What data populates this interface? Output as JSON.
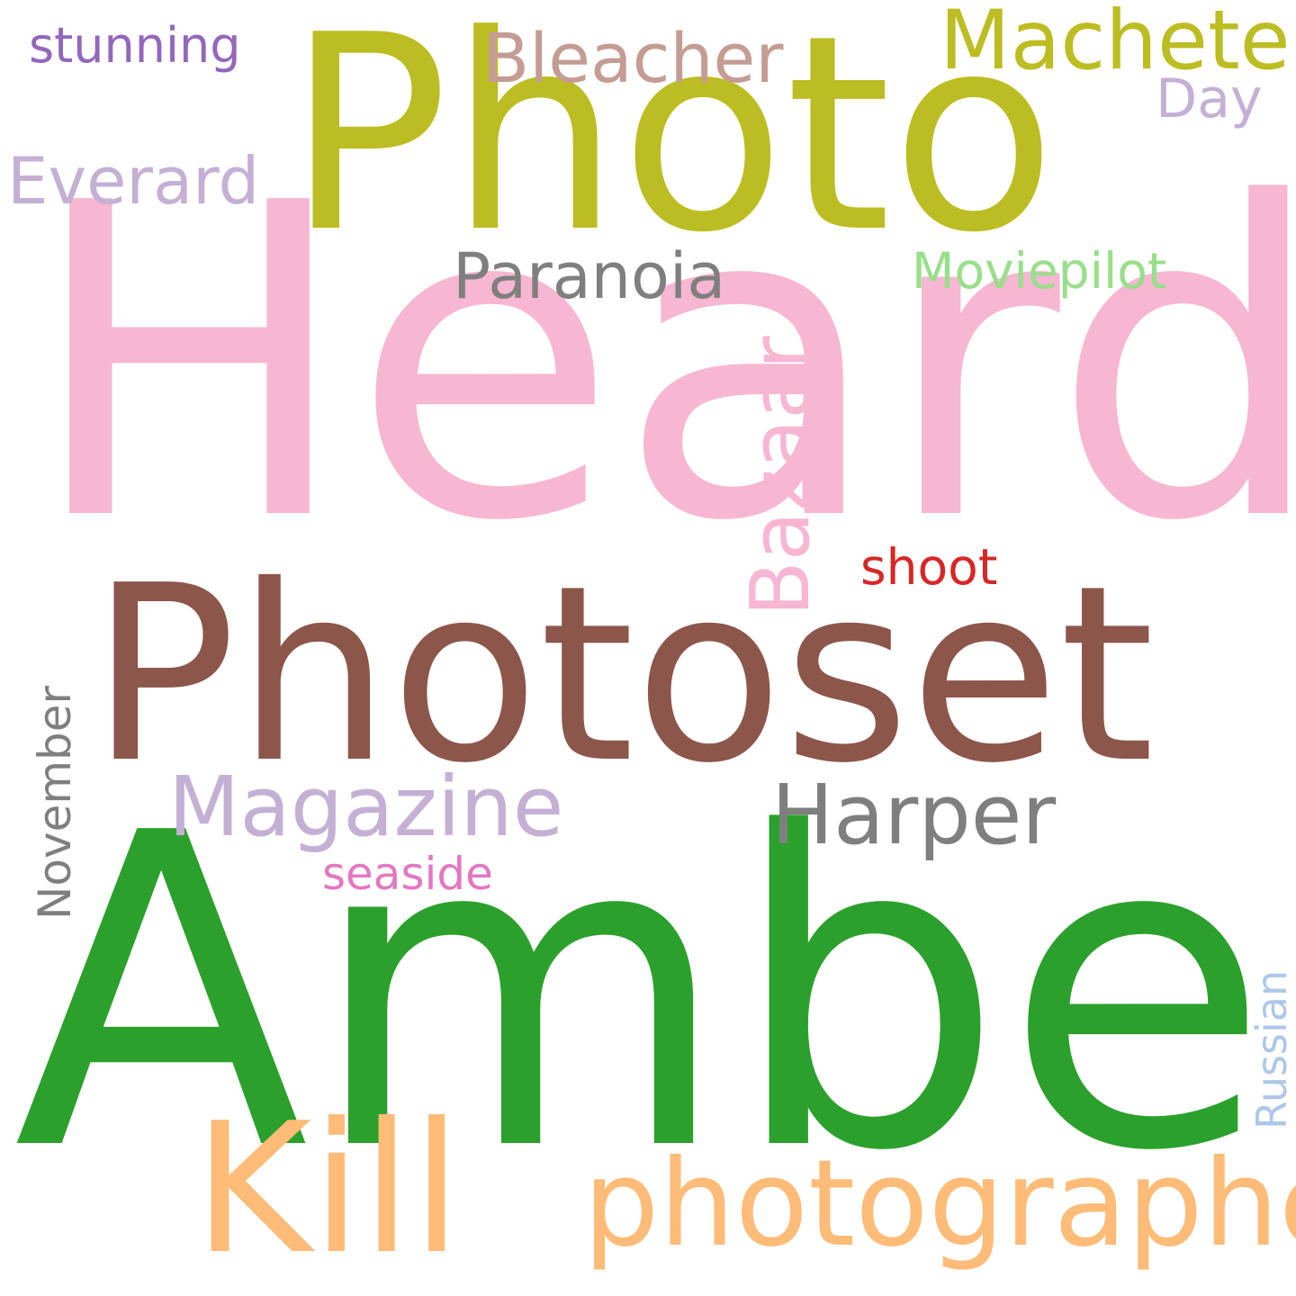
{
  "words": [
    {
      "text": "Heard",
      "color": "#f7b6d2"
    },
    {
      "text": "Photo",
      "color": "#bcbd22"
    },
    {
      "text": "Photoset",
      "color": "#8c564b"
    },
    {
      "text": "Amber",
      "color": "#2ca02c"
    },
    {
      "text": "Kill",
      "color": "#ffbb78"
    },
    {
      "text": "photographed",
      "color": "#ffbb78"
    },
    {
      "text": "Machete",
      "color": "#bcbd22"
    },
    {
      "text": "Bleacher",
      "color": "#c49c94"
    },
    {
      "text": "stunning",
      "color": "#9467bd"
    },
    {
      "text": "Everard",
      "color": "#c5b0d5"
    },
    {
      "text": "Day",
      "color": "#c5b0d5"
    },
    {
      "text": "Paranoia",
      "color": "#7f7f7f"
    },
    {
      "text": "Moviepilot",
      "color": "#98df8a"
    },
    {
      "text": "Bazaar",
      "color": "#f7b6d2"
    },
    {
      "text": "shoot",
      "color": "#d62728"
    },
    {
      "text": "Magazine",
      "color": "#c5b0d5"
    },
    {
      "text": "Harper",
      "color": "#7f7f7f"
    },
    {
      "text": "seaside",
      "color": "#e377c2"
    },
    {
      "text": "November",
      "color": "#7f7f7f"
    },
    {
      "text": "Russian",
      "color": "#aec7e8"
    }
  ]
}
